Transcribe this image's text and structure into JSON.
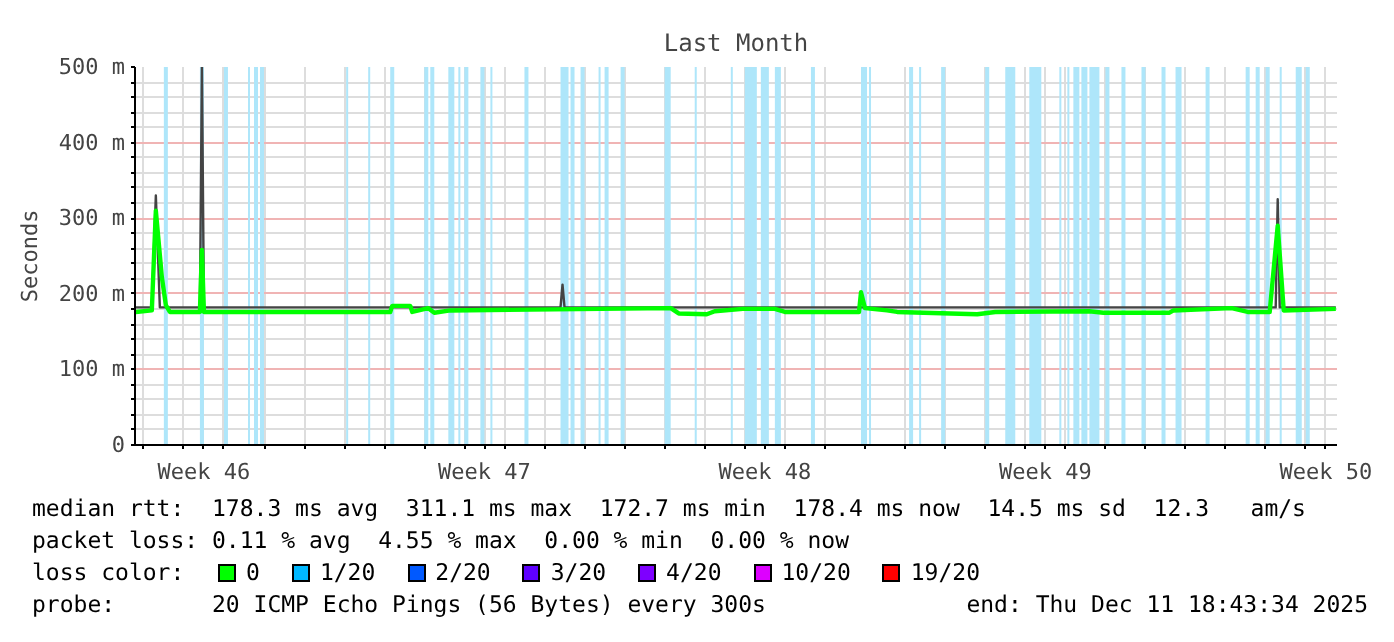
{
  "chart_data": {
    "type": "line",
    "title": "Last Month",
    "ylabel": "Seconds",
    "legend_title": "loss color:",
    "legend": "bottom",
    "grid": true,
    "xlim": [
      "2025-11-11T18:43",
      "2025-12-11T18:43"
    ],
    "xticks": [
      {
        "value": "2025-11-13T12:00",
        "label": "Week 46"
      },
      {
        "value": "2025-11-20T12:00",
        "label": "Week 47"
      },
      {
        "value": "2025-11-27T12:00",
        "label": "Week 48"
      },
      {
        "value": "2025-12-04T12:00",
        "label": "Week 49"
      },
      {
        "value": "2025-12-11T12:00",
        "label": "Week 50"
      },
      {
        "value": "2025-11-12",
        "label": null
      },
      {
        "value": "2025-11-13",
        "label": null
      },
      {
        "value": "2025-11-14",
        "label": null
      },
      {
        "value": "2025-11-15",
        "label": null
      },
      {
        "value": "2025-11-16",
        "label": null
      },
      {
        "value": "2025-11-17",
        "label": null
      },
      {
        "value": "2025-11-18",
        "label": null
      },
      {
        "value": "2025-11-19",
        "label": null
      },
      {
        "value": "2025-11-20",
        "label": null
      },
      {
        "value": "2025-11-21",
        "label": null
      },
      {
        "value": "2025-11-22",
        "label": null
      },
      {
        "value": "2025-11-23",
        "label": null
      },
      {
        "value": "2025-11-24",
        "label": null
      },
      {
        "value": "2025-11-25",
        "label": null
      },
      {
        "value": "2025-11-26",
        "label": null
      },
      {
        "value": "2025-11-27",
        "label": null
      },
      {
        "value": "2025-11-28",
        "label": null
      },
      {
        "value": "2025-11-29",
        "label": null
      },
      {
        "value": "2025-11-30",
        "label": null
      },
      {
        "value": "2025-12-01",
        "label": null
      },
      {
        "value": "2025-12-02",
        "label": null
      },
      {
        "value": "2025-12-03",
        "label": null
      },
      {
        "value": "2025-12-04",
        "label": null
      },
      {
        "value": "2025-12-05",
        "label": null
      },
      {
        "value": "2025-12-06",
        "label": null
      },
      {
        "value": "2025-12-07",
        "label": null
      },
      {
        "value": "2025-12-08",
        "label": null
      },
      {
        "value": "2025-12-09",
        "label": null
      },
      {
        "value": "2025-12-10",
        "label": null
      },
      {
        "value": "2025-12-11",
        "label": null
      }
    ],
    "ylim": [
      0,
      500
    ],
    "yticks": [
      0,
      {
        "value": 100,
        "label": "100 m"
      },
      {
        "value": 200,
        "label": "200 m"
      },
      {
        "value": 300,
        "label": "300 m"
      },
      {
        "value": 400,
        "label": "400 m"
      },
      {
        "value": 500,
        "label": "500 m"
      },
      {
        "value": 20,
        "label": null
      },
      {
        "value": 40,
        "label": null
      },
      {
        "value": 60,
        "label": null
      },
      {
        "value": 80,
        "label": null
      },
      {
        "value": 120,
        "label": null
      },
      {
        "value": 140,
        "label": null
      },
      {
        "value": 160,
        "label": null
      },
      {
        "value": 180,
        "label": null
      },
      {
        "value": 220,
        "label": null
      },
      {
        "value": 240,
        "label": null
      },
      {
        "value": 260,
        "label": null
      },
      {
        "value": 280,
        "label": null
      },
      {
        "value": 320,
        "label": null
      },
      {
        "value": 340,
        "label": null
      },
      {
        "value": 360,
        "label": null
      },
      {
        "value": 380,
        "label": null
      },
      {
        "value": 420,
        "label": null
      },
      {
        "value": 440,
        "label": null
      },
      {
        "value": 460,
        "label": null
      },
      {
        "value": 480,
        "label": null
      }
    ],
    "bands": [
      {
        "axis": "x",
        "from": "2025-11-12T12:00",
        "to": "2025-11-12T14:24",
        "color": "#aee6fa"
      },
      {
        "axis": "x",
        "from": "2025-11-13T09:36",
        "to": "2025-11-13T12:00",
        "color": "#aee6fa"
      },
      {
        "axis": "x",
        "from": "2025-11-14T00:00",
        "to": "2025-11-14T02:24",
        "color": "#aee6fa"
      },
      {
        "axis": "x",
        "from": "2025-11-14T14:24",
        "to": "2025-11-14T15:36",
        "color": "#aee6fa"
      },
      {
        "axis": "x",
        "from": "2025-11-14T18:00",
        "to": "2025-11-14T20:24",
        "color": "#aee6fa"
      },
      {
        "axis": "x",
        "from": "2025-11-14T21:36",
        "to": "2025-11-15T00:00",
        "color": "#aee6fa"
      },
      {
        "axis": "x",
        "from": "2025-11-17T01:12",
        "to": "2025-11-17T02:24",
        "color": "#aee6fa"
      },
      {
        "axis": "x",
        "from": "2025-11-17T14:24",
        "to": "2025-11-17T15:36",
        "color": "#aee6fa"
      },
      {
        "axis": "x",
        "from": "2025-11-18T03:36",
        "to": "2025-11-18T06:00",
        "color": "#aee6fa"
      },
      {
        "axis": "x",
        "from": "2025-11-19T00:00",
        "to": "2025-11-19T02:24",
        "color": "#aee6fa"
      },
      {
        "axis": "x",
        "from": "2025-11-19T03:36",
        "to": "2025-11-19T06:00",
        "color": "#aee6fa"
      },
      {
        "axis": "x",
        "from": "2025-11-19T14:24",
        "to": "2025-11-19T18:00",
        "color": "#aee6fa"
      },
      {
        "axis": "x",
        "from": "2025-11-19T20:24",
        "to": "2025-11-19T21:36",
        "color": "#aee6fa"
      },
      {
        "axis": "x",
        "from": "2025-11-20T00:00",
        "to": "2025-11-20T02:24",
        "color": "#aee6fa"
      },
      {
        "axis": "x",
        "from": "2025-11-20T09:36",
        "to": "2025-11-20T12:00",
        "color": "#aee6fa"
      },
      {
        "axis": "x",
        "from": "2025-11-20T15:36",
        "to": "2025-11-20T16:48",
        "color": "#aee6fa"
      },
      {
        "axis": "x",
        "from": "2025-11-21T12:00",
        "to": "2025-11-21T14:24",
        "color": "#aee6fa"
      },
      {
        "axis": "x",
        "from": "2025-11-22T09:36",
        "to": "2025-11-22T14:24",
        "color": "#aee6fa"
      },
      {
        "axis": "x",
        "from": "2025-11-22T15:36",
        "to": "2025-11-22T18:00",
        "color": "#aee6fa"
      },
      {
        "axis": "x",
        "from": "2025-11-22T21:36",
        "to": "2025-11-23T00:00",
        "color": "#aee6fa"
      },
      {
        "axis": "x",
        "from": "2025-11-23T08:24",
        "to": "2025-11-23T09:36",
        "color": "#aee6fa"
      },
      {
        "axis": "x",
        "from": "2025-11-23T12:00",
        "to": "2025-11-23T14:24",
        "color": "#aee6fa"
      },
      {
        "axis": "x",
        "from": "2025-11-23T21:36",
        "to": "2025-11-24T00:00",
        "color": "#aee6fa"
      },
      {
        "axis": "x",
        "from": "2025-11-25T00:00",
        "to": "2025-11-25T03:36",
        "color": "#aee6fa"
      },
      {
        "axis": "x",
        "from": "2025-11-25T18:00",
        "to": "2025-11-25T19:12",
        "color": "#aee6fa"
      },
      {
        "axis": "x",
        "from": "2025-11-26T15:36",
        "to": "2025-11-26T16:48",
        "color": "#aee6fa"
      },
      {
        "axis": "x",
        "from": "2025-11-27T00:00",
        "to": "2025-11-27T07:12",
        "color": "#aee6fa"
      },
      {
        "axis": "x",
        "from": "2025-11-27T09:36",
        "to": "2025-11-27T14:24",
        "color": "#aee6fa"
      },
      {
        "axis": "x",
        "from": "2025-11-27T18:00",
        "to": "2025-11-27T21:36",
        "color": "#aee6fa"
      },
      {
        "axis": "x",
        "from": "2025-11-28T15:36",
        "to": "2025-11-28T18:00",
        "color": "#aee6fa"
      },
      {
        "axis": "x",
        "from": "2025-11-29T21:36",
        "to": "2025-11-30T01:12",
        "color": "#aee6fa"
      },
      {
        "axis": "x",
        "from": "2025-11-30T02:24",
        "to": "2025-11-30T03:36",
        "color": "#aee6fa"
      },
      {
        "axis": "x",
        "from": "2025-12-01T02:24",
        "to": "2025-12-01T04:48",
        "color": "#aee6fa"
      },
      {
        "axis": "x",
        "from": "2025-12-01T08:24",
        "to": "2025-12-01T09:36",
        "color": "#aee6fa"
      },
      {
        "axis": "x",
        "from": "2025-12-01T21:36",
        "to": "2025-12-02T00:00",
        "color": "#aee6fa"
      },
      {
        "axis": "x",
        "from": "2025-12-03T00:00",
        "to": "2025-12-03T02:24",
        "color": "#aee6fa"
      },
      {
        "axis": "x",
        "from": "2025-12-03T12:00",
        "to": "2025-12-03T18:00",
        "color": "#aee6fa"
      },
      {
        "axis": "x",
        "from": "2025-12-04T02:24",
        "to": "2025-12-04T09:36",
        "color": "#aee6fa"
      },
      {
        "axis": "x",
        "from": "2025-12-04T20:24",
        "to": "2025-12-04T21:36",
        "color": "#aee6fa"
      },
      {
        "axis": "x",
        "from": "2025-12-05T01:12",
        "to": "2025-12-05T02:24",
        "color": "#aee6fa"
      },
      {
        "axis": "x",
        "from": "2025-12-05T04:48",
        "to": "2025-12-05T08:24",
        "color": "#aee6fa"
      },
      {
        "axis": "x",
        "from": "2025-12-05T09:36",
        "to": "2025-12-05T13:12",
        "color": "#aee6fa"
      },
      {
        "axis": "x",
        "from": "2025-12-05T14:24",
        "to": "2025-12-05T20:24",
        "color": "#aee6fa"
      },
      {
        "axis": "x",
        "from": "2025-12-06T00:00",
        "to": "2025-12-06T02:24",
        "color": "#aee6fa"
      },
      {
        "axis": "x",
        "from": "2025-12-06T09:36",
        "to": "2025-12-06T12:00",
        "color": "#aee6fa"
      },
      {
        "axis": "x",
        "from": "2025-12-06T21:36",
        "to": "2025-12-07T00:00",
        "color": "#aee6fa"
      },
      {
        "axis": "x",
        "from": "2025-12-07T09:36",
        "to": "2025-12-07T12:00",
        "color": "#aee6fa"
      },
      {
        "axis": "x",
        "from": "2025-12-07T18:00",
        "to": "2025-12-07T21:36",
        "color": "#aee6fa"
      },
      {
        "axis": "x",
        "from": "2025-12-08T12:00",
        "to": "2025-12-08T14:24",
        "color": "#aee6fa"
      },
      {
        "axis": "x",
        "from": "2025-12-09T12:00",
        "to": "2025-12-09T14:24",
        "color": "#aee6fa"
      },
      {
        "axis": "x",
        "from": "2025-12-09T18:00",
        "to": "2025-12-09T20:24",
        "color": "#aee6fa"
      },
      {
        "axis": "x",
        "from": "2025-12-10T00:00",
        "to": "2025-12-10T02:24",
        "color": "#aee6fa"
      },
      {
        "axis": "x",
        "from": "2025-12-10T08:24",
        "to": "2025-12-10T09:36",
        "color": "#aee6fa"
      },
      {
        "axis": "x",
        "from": "2025-12-10T18:00",
        "to": "2025-12-10T21:36",
        "color": "#aee6fa"
      },
      {
        "axis": "x",
        "from": "2025-12-11T00:00",
        "to": "2025-12-11T02:24",
        "color": "#aee6fa"
      }
    ],
    "series": [
      {
        "color": "#444444",
        "x": [
          "2025-11-11T19:12",
          "2025-11-12T04:48",
          "2025-11-12T07:12",
          "2025-11-12T09:36",
          "2025-11-13T09:36",
          "2025-11-13T10:48",
          "2025-11-13T12:00",
          "2025-11-22T09:36",
          "2025-11-22T10:48",
          "2025-11-22T12:00",
          "2025-12-10T06:00",
          "2025-12-10T07:12",
          "2025-12-10T08:24",
          "2025-12-11T18:00"
        ],
        "values": [
          182,
          182,
          330,
          182,
          182,
          500,
          182,
          182,
          212,
          182,
          182,
          325,
          182,
          182
        ]
      },
      {
        "name": "0",
        "color": "#00ff00",
        "x": [
          "2025-11-11T19:12",
          "2025-11-12T04:48",
          "2025-11-12T07:12",
          "2025-11-12T10:48",
          "2025-11-12T13:12",
          "2025-11-12T15:36",
          "2025-11-13T09:36",
          "2025-11-13T10:48",
          "2025-11-13T12:00",
          "2025-11-18T03:36",
          "2025-11-18T04:48",
          "2025-11-18T15:36",
          "2025-11-18T16:48",
          "2025-11-19T02:24",
          "2025-11-19T06:00",
          "2025-11-19T15:36",
          "2025-11-25T03:36",
          "2025-11-25T08:24",
          "2025-11-26T01:12",
          "2025-11-26T06:00",
          "2025-11-26T22:48",
          "2025-11-27T18:00",
          "2025-11-28T00:00",
          "2025-11-29T20:24",
          "2025-11-29T21:36",
          "2025-11-30T00:00",
          "2025-11-30T13:12",
          "2025-11-30T19:12",
          "2025-12-02T19:12",
          "2025-12-03T06:00",
          "2025-12-05T14:24",
          "2025-12-05T22:48",
          "2025-12-07T14:24",
          "2025-12-07T16:48",
          "2025-12-09T03:36",
          "2025-12-09T13:12",
          "2025-12-10T02:24",
          "2025-12-10T07:12",
          "2025-12-10T10:48",
          "2025-12-11T18:00"
        ],
        "values": [
          176,
          178,
          310,
          222,
          185,
          176,
          176,
          258,
          176,
          176,
          184,
          184,
          176,
          181,
          175,
          178,
          181,
          174,
          173,
          177,
          180,
          180,
          176,
          176,
          202,
          181,
          178,
          176,
          173,
          176,
          177,
          175,
          175,
          178,
          181,
          176,
          176,
          290,
          178,
          180
        ]
      },
      {
        "name": "1/20",
        "color": "#00b8ff"
      },
      {
        "name": "2/20",
        "color": "#0059ff"
      },
      {
        "name": "3/20",
        "color": "#5e00ff"
      },
      {
        "name": "4/20",
        "color": "#7e00ff"
      },
      {
        "name": "10/20",
        "color": "#dd00ff"
      },
      {
        "name": "19/20",
        "color": "#ff0000"
      }
    ],
    "annotations": [
      "median rtt:  178.3 ms avg  311.1 ms max  172.7 ms min  178.4 ms now  14.5 ms sd  12.3   am/s",
      "packet loss: 0.11 % avg  4.55 % max  0.00 % min  0.00 % now",
      "probe:       20 ICMP Echo Pings (56 Bytes) every 300s",
      "end: Thu Dec 11 18:43:34 2025"
    ]
  }
}
